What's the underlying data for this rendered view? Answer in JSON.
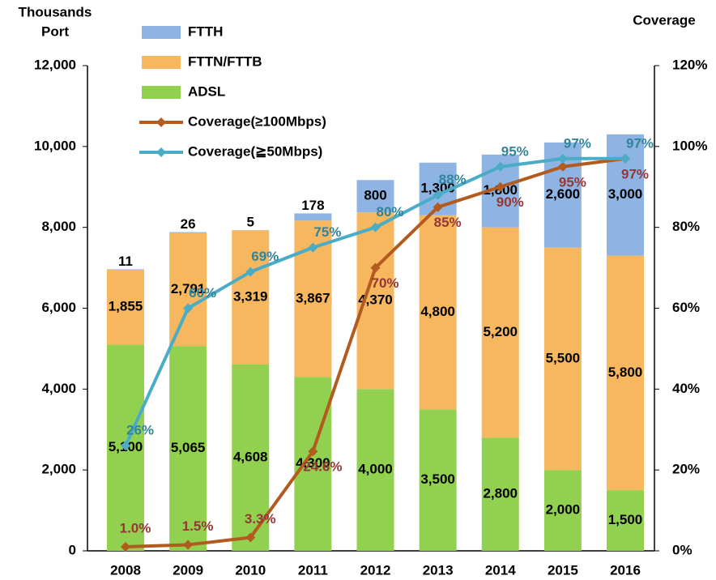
{
  "chart_data": {
    "type": "bar",
    "y_label_lines": [
      "Thousands",
      "Port"
    ],
    "y2_label": "Coverage",
    "categories": [
      "2008",
      "2009",
      "2010",
      "2011",
      "2012",
      "2013",
      "2014",
      "2015",
      "2016"
    ],
    "series": [
      {
        "name": "FTTH",
        "type": "bar",
        "color": "#8db4e2",
        "values": [
          11,
          26,
          5,
          178,
          800,
          1300,
          1800,
          2600,
          3000
        ],
        "value_labels": [
          "11",
          "26",
          "5",
          "178",
          "800",
          "1,300",
          "1,800",
          "2,600",
          "3,000"
        ]
      },
      {
        "name": "FTTN/FTTB",
        "type": "bar",
        "color": "#f6b75e",
        "values": [
          1855,
          2791,
          3319,
          3867,
          4370,
          4800,
          5200,
          5500,
          5800
        ],
        "value_labels": [
          "1,855",
          "2,791",
          "3,319",
          "3,867",
          "4,370",
          "4,800",
          "5,200",
          "5,500",
          "5,800"
        ]
      },
      {
        "name": "ADSL",
        "type": "bar",
        "color": "#92d050",
        "values": [
          5100,
          5065,
          4608,
          4300,
          4000,
          3500,
          2800,
          2000,
          1500
        ],
        "value_labels": [
          "5,100",
          "5,065",
          "4,608",
          "4,300",
          "4,000",
          "3,500",
          "2,800",
          "2,000",
          "1,500"
        ]
      },
      {
        "name": "Coverage(≥100Mbps)",
        "type": "line",
        "axis": "y2",
        "color": "#b35a1f",
        "label_color": "#953735",
        "values": [
          1.0,
          1.5,
          3.3,
          24.6,
          70,
          85,
          90,
          95,
          97
        ],
        "value_labels": [
          "1.0%",
          "1.5%",
          "3.3%",
          "24.6%",
          "70%",
          "85%",
          "90%",
          "95%",
          "97%"
        ]
      },
      {
        "name": "Coverage(≧50Mbps)",
        "type": "line",
        "axis": "y2",
        "color": "#4bacc6",
        "label_color": "#31849b",
        "values": [
          26,
          60,
          69,
          75,
          80,
          88,
          95,
          97,
          97
        ],
        "value_labels": [
          "26%",
          "60%",
          "69%",
          "75%",
          "80%",
          "88%",
          "95%",
          "97%",
          "97%"
        ]
      }
    ],
    "ylim": [
      0,
      12000
    ],
    "yticks": [
      {
        "value": 0,
        "label": "0"
      },
      {
        "value": 2000,
        "label": "2,000"
      },
      {
        "value": 4000,
        "label": "4,000"
      },
      {
        "value": 6000,
        "label": "6,000"
      },
      {
        "value": 8000,
        "label": "8,000"
      },
      {
        "value": 10000,
        "label": "10,000"
      },
      {
        "value": 12000,
        "label": "12,000"
      }
    ],
    "y2lim": [
      0,
      120
    ],
    "y2ticks": [
      {
        "value": 0,
        "label": "0%"
      },
      {
        "value": 20,
        "label": "20%"
      },
      {
        "value": 40,
        "label": "40%"
      },
      {
        "value": 60,
        "label": "60%"
      },
      {
        "value": 80,
        "label": "80%"
      },
      {
        "value": 100,
        "label": "100%"
      },
      {
        "value": 120,
        "label": "120%"
      }
    ],
    "grid": false
  }
}
